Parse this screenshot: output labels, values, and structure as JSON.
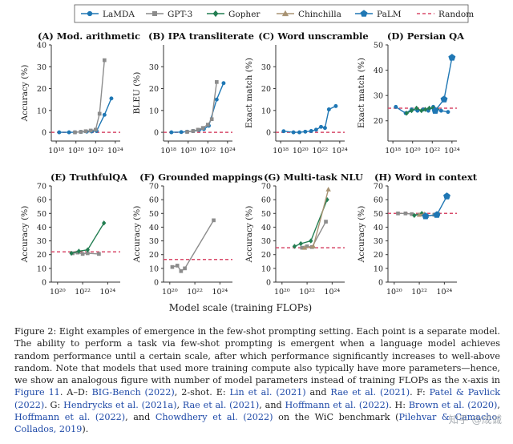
{
  "legend": [
    {
      "name": "LaMDA",
      "color": "#1f77b4",
      "marker": "circle"
    },
    {
      "name": "GPT-3",
      "color": "#8c8c8c",
      "marker": "square"
    },
    {
      "name": "Gopher",
      "color": "#237e52",
      "marker": "diamond"
    },
    {
      "name": "Chinchilla",
      "color": "#a89373",
      "marker": "triangle"
    },
    {
      "name": "PaLM",
      "color": "#1f77b4",
      "marker": "pentagon"
    },
    {
      "name": "Random",
      "color": "#d84a6a",
      "marker": "dashed-line"
    }
  ],
  "xlabel_shared": "Model scale (training FLOPs)",
  "chart_data": [
    {
      "type": "line",
      "title": "(A) Mod. arithmetic",
      "ylabel": "Accuracy (%)",
      "xlim": [
        17.5,
        24.5
      ],
      "xticks": [
        18,
        20,
        22,
        24
      ],
      "xtick_labels": [
        "10¹⁸",
        "10²⁰",
        "10²²",
        "10²⁴"
      ],
      "ylim": [
        -4,
        40
      ],
      "yticks": [
        0,
        10,
        20,
        30,
        40
      ],
      "random": 0,
      "series": [
        {
          "name": "LaMDA",
          "x": [
            18.3,
            19.3,
            19.9,
            20.5,
            21.1,
            21.6,
            22.1,
            22.9,
            23.6
          ],
          "y": [
            0,
            0,
            0,
            0.2,
            0.3,
            0.4,
            0.6,
            8,
            15.5
          ]
        },
        {
          "name": "GPT-3",
          "x": [
            19.9,
            20.5,
            21.0,
            21.5,
            22.0,
            22.4,
            22.9
          ],
          "y": [
            0,
            0.2,
            0.5,
            0.8,
            1.2,
            8.5,
            33
          ]
        }
      ]
    },
    {
      "type": "line",
      "title": "(B) IPA transliterate",
      "ylabel": "BLEU (%)",
      "xlim": [
        17.5,
        24.5
      ],
      "xticks": [
        18,
        20,
        22,
        24
      ],
      "xtick_labels": [
        "10¹⁸",
        "10²⁰",
        "10²²",
        "10²⁴"
      ],
      "ylim": [
        -4,
        40
      ],
      "yticks": [
        0,
        10,
        20,
        30
      ],
      "random": 0,
      "series": [
        {
          "name": "LaMDA",
          "x": [
            18.3,
            19.3,
            19.9,
            20.5,
            21.1,
            21.6,
            22.1,
            22.9,
            23.6
          ],
          "y": [
            0,
            0.1,
            0.3,
            0.6,
            1,
            1.5,
            3,
            15,
            22.5
          ]
        },
        {
          "name": "GPT-3",
          "x": [
            19.9,
            20.5,
            21.0,
            21.5,
            22.0,
            22.4,
            22.9
          ],
          "y": [
            0.2,
            0.6,
            1.2,
            2,
            3.5,
            6,
            23
          ]
        }
      ]
    },
    {
      "type": "line",
      "title": "(C) Word unscramble",
      "ylabel": "Exact match (%)",
      "xlim": [
        17.5,
        24.5
      ],
      "xticks": [
        18,
        20,
        22,
        24
      ],
      "xtick_labels": [
        "10¹⁸",
        "10²⁰",
        "10²²",
        "10²⁴"
      ],
      "ylim": [
        -4,
        40
      ],
      "yticks": [
        0,
        10,
        20,
        30
      ],
      "random": 0,
      "series": [
        {
          "name": "LaMDA",
          "x": [
            18.3,
            19.3,
            19.9,
            20.5,
            21.1,
            21.6,
            22.1,
            22.5,
            22.9,
            23.6
          ],
          "y": [
            0.5,
            0,
            0,
            0.3,
            0.6,
            1.2,
            2.5,
            2,
            10.5,
            12
          ]
        }
      ]
    },
    {
      "type": "line",
      "title": "(D) Persian QA",
      "ylabel": "Exact match (%)",
      "xlim": [
        17.5,
        24.5
      ],
      "xticks": [
        18,
        20,
        22,
        24
      ],
      "xtick_labels": [
        "10¹⁸",
        "10²⁰",
        "10²²",
        "10²⁴"
      ],
      "ylim": [
        12,
        50
      ],
      "yticks": [
        20,
        30,
        40,
        50
      ],
      "random": 25,
      "series": [
        {
          "name": "LaMDA",
          "x": [
            18.3,
            19.3,
            19.9,
            20.5,
            21.1,
            21.6,
            22.1,
            22.9,
            23.6
          ],
          "y": [
            25.5,
            23,
            24.5,
            24,
            24.5,
            24,
            25.5,
            24,
            23.5
          ]
        },
        {
          "name": "Gopher",
          "x": [
            19.4,
            19.9,
            20.4,
            20.9,
            21.3,
            21.7,
            22.1,
            22.5
          ],
          "y": [
            23,
            24,
            25,
            24,
            24.5,
            25,
            25,
            24.5
          ]
        },
        {
          "name": "PaLM",
          "x": [
            22.3,
            23.2,
            24.0
          ],
          "y": [
            24,
            28.5,
            45
          ]
        }
      ]
    },
    {
      "type": "line",
      "title": "(E) TruthfulQA",
      "ylabel": "Accuracy (%)",
      "xlim": [
        19.5,
        25
      ],
      "xticks": [
        20,
        22,
        24
      ],
      "xtick_labels": [
        "10²⁰",
        "10²²",
        "10²⁴"
      ],
      "ylim": [
        0,
        70
      ],
      "yticks": [
        0,
        10,
        20,
        30,
        40,
        50,
        60,
        70
      ],
      "random": 22,
      "series": [
        {
          "name": "GPT-3",
          "x": [
            21.2,
            21.6,
            22.0,
            22.4,
            23.3
          ],
          "y": [
            21,
            21.5,
            20.5,
            21,
            20.5
          ]
        },
        {
          "name": "Gopher",
          "x": [
            21.1,
            21.7,
            22.4,
            23.7
          ],
          "y": [
            21,
            22.5,
            23.5,
            43
          ]
        }
      ]
    },
    {
      "type": "line",
      "title": "(F) Grounded mappings",
      "ylabel": "Accuracy (%)",
      "xlim": [
        19.5,
        25
      ],
      "xticks": [
        20,
        22,
        24
      ],
      "xtick_labels": [
        "10²⁰",
        "10²²",
        "10²⁴"
      ],
      "ylim": [
        0,
        70
      ],
      "yticks": [
        0,
        10,
        20,
        30,
        40,
        50,
        60,
        70
      ],
      "random": 16.5,
      "series": [
        {
          "name": "GPT-3",
          "x": [
            20.2,
            20.6,
            20.9,
            21.2,
            23.5
          ],
          "y": [
            11,
            12,
            8,
            10,
            45
          ]
        }
      ]
    },
    {
      "type": "line",
      "title": "(G) Multi-task NLU",
      "ylabel": "Accuracy (%)",
      "xlim": [
        19.5,
        25
      ],
      "xticks": [
        20,
        22,
        24
      ],
      "xtick_labels": [
        "10²⁰",
        "10²²",
        "10²⁴"
      ],
      "ylim": [
        0,
        70
      ],
      "yticks": [
        0,
        10,
        20,
        30,
        40,
        50,
        60,
        70
      ],
      "random": 25,
      "series": [
        {
          "name": "GPT-3",
          "x": [
            21.6,
            22.0,
            22.4,
            23.5
          ],
          "y": [
            25,
            26,
            25.5,
            44
          ]
        },
        {
          "name": "Gopher",
          "x": [
            21.0,
            21.5,
            22.3,
            23.6
          ],
          "y": [
            26,
            28,
            30,
            60
          ]
        },
        {
          "name": "Chinchilla",
          "x": [
            21.8,
            22.5,
            23.7
          ],
          "y": [
            25,
            26,
            67.5
          ]
        }
      ]
    },
    {
      "type": "line",
      "title": "(H) Word in context",
      "ylabel": "Accuracy (%)",
      "xlim": [
        19.5,
        25
      ],
      "xticks": [
        20,
        22,
        24
      ],
      "xtick_labels": [
        "10²⁰",
        "10²²",
        "10²⁴"
      ],
      "ylim": [
        0,
        70
      ],
      "yticks": [
        0,
        10,
        20,
        30,
        40,
        50,
        60,
        70
      ],
      "random": 50,
      "series": [
        {
          "name": "GPT-3",
          "x": [
            20.3,
            20.9,
            21.4,
            22.0,
            22.6,
            23.2,
            23.5
          ],
          "y": [
            50,
            50,
            49.5,
            49,
            48,
            49,
            49.5
          ]
        },
        {
          "name": "Gopher",
          "x": [
            21.6,
            22.2
          ],
          "y": [
            48.5,
            50
          ]
        },
        {
          "name": "Chinchilla",
          "x": [
            22.0,
            22.4
          ],
          "y": [
            49,
            49.5
          ]
        },
        {
          "name": "PaLM",
          "x": [
            22.5,
            23.4,
            24.2
          ],
          "y": [
            48,
            49,
            62.5
          ]
        }
      ]
    }
  ],
  "caption": {
    "text": "Figure 2: Eight examples of emergence in the few-shot prompting setting. Each point is a separate model. The ability to perform a task via few-shot prompting is emergent when a language model achieves random performance until a certain scale, after which performance significantly increases to well-above random. Note that models that used more training compute also typically have more parameters—hence, we show an analogous figure with number of model parameters instead of training FLOPs as the x-axis in Figure 11. A–D: BIG-Bench (2022), 2-shot. E: Lin et al. (2021) and Rae et al. (2021). F: Patel & Pavlick (2022). G: Hendrycks et al. (2021a), Rae et al. (2021), and Hoffmann et al. (2022). H: Brown et al. (2020), Hoffmann et al. (2022), and Chowdhery et al. (2022) on the WiC benchmark (Pilehvar & Camacho-Collados, 2019)."
  },
  "watermark": "知乎 @成诚",
  "colors": {
    "random": "#d84a6a",
    "axis": "#333333",
    "caption_link": "#1f4aa8"
  }
}
